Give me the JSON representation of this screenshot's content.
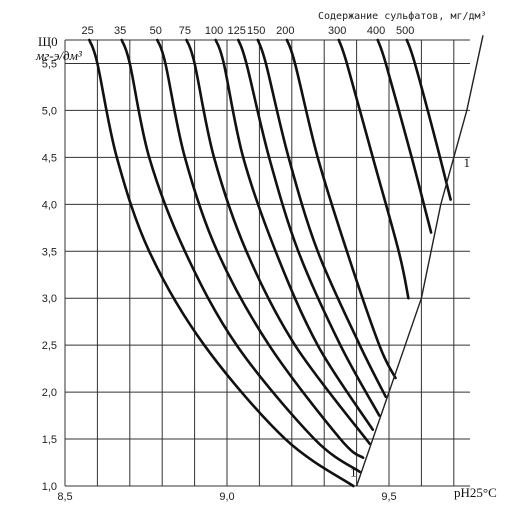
{
  "chart_data": {
    "type": "line",
    "title": "Содержание сульфатов, мг/дм³",
    "ylabel_top": "Щ0",
    "ylabel_unit": "мг-э/дм³",
    "xlabel": "pH25°C",
    "xlim": [
      8.5,
      9.75
    ],
    "ylim": [
      1.0,
      5.75
    ],
    "x_ticks": [
      "8,5",
      "9,0",
      "9,5"
    ],
    "y_ticks": [
      "1,0",
      "1,5",
      "2,0",
      "2,5",
      "3,0",
      "3,5",
      "4,0",
      "4,5",
      "5,0",
      "5,5"
    ],
    "series": [
      {
        "name": "25",
        "points": [
          [
            8.6,
            5.5
          ],
          [
            8.66,
            4.5
          ],
          [
            8.76,
            3.5
          ],
          [
            8.93,
            2.5
          ],
          [
            9.18,
            1.5
          ],
          [
            9.39,
            1.0
          ]
        ]
      },
      {
        "name": "35",
        "points": [
          [
            8.7,
            5.5
          ],
          [
            8.76,
            4.5
          ],
          [
            8.87,
            3.5
          ],
          [
            9.03,
            2.5
          ],
          [
            9.27,
            1.5
          ],
          [
            9.41,
            1.15
          ]
        ]
      },
      {
        "name": "50",
        "points": [
          [
            8.81,
            5.5
          ],
          [
            8.87,
            4.5
          ],
          [
            8.97,
            3.5
          ],
          [
            9.13,
            2.5
          ],
          [
            9.35,
            1.5
          ],
          [
            9.42,
            1.3
          ]
        ]
      },
      {
        "name": "75",
        "points": [
          [
            8.9,
            5.5
          ],
          [
            8.96,
            4.5
          ],
          [
            9.06,
            3.5
          ],
          [
            9.21,
            2.5
          ],
          [
            9.44,
            1.45
          ]
        ]
      },
      {
        "name": "100",
        "points": [
          [
            8.99,
            5.5
          ],
          [
            9.05,
            4.5
          ],
          [
            9.15,
            3.5
          ],
          [
            9.28,
            2.5
          ],
          [
            9.45,
            1.6
          ]
        ]
      },
      {
        "name": "125",
        "points": [
          [
            9.06,
            5.5
          ],
          [
            9.13,
            4.5
          ],
          [
            9.22,
            3.5
          ],
          [
            9.35,
            2.5
          ],
          [
            9.47,
            1.75
          ]
        ]
      },
      {
        "name": "150",
        "points": [
          [
            9.12,
            5.5
          ],
          [
            9.19,
            4.5
          ],
          [
            9.28,
            3.5
          ],
          [
            9.41,
            2.5
          ],
          [
            9.49,
            1.95
          ]
        ]
      },
      {
        "name": "200",
        "points": [
          [
            9.21,
            5.5
          ],
          [
            9.28,
            4.5
          ],
          [
            9.37,
            3.5
          ],
          [
            9.47,
            2.5
          ],
          [
            9.52,
            2.15
          ]
        ]
      },
      {
        "name": "300",
        "points": [
          [
            9.37,
            5.5
          ],
          [
            9.45,
            4.5
          ],
          [
            9.53,
            3.5
          ],
          [
            9.56,
            3.0
          ]
        ]
      },
      {
        "name": "400",
        "points": [
          [
            9.49,
            5.5
          ],
          [
            9.57,
            4.5
          ],
          [
            9.63,
            3.7
          ]
        ]
      },
      {
        "name": "500",
        "points": [
          [
            9.58,
            5.5
          ],
          [
            9.65,
            4.6
          ],
          [
            9.69,
            4.05
          ]
        ]
      }
    ],
    "boundary_line": [
      [
        9.4,
        1.0
      ],
      [
        9.55,
        2.5
      ],
      [
        9.6,
        3.0
      ],
      [
        9.66,
        4.0
      ],
      [
        9.74,
        5.0
      ],
      [
        9.79,
        5.8
      ]
    ],
    "annotations": [
      {
        "text": "1",
        "x": 9.38,
        "y": 1.1
      },
      {
        "text": "1",
        "x": 9.73,
        "y": 4.4
      }
    ]
  }
}
